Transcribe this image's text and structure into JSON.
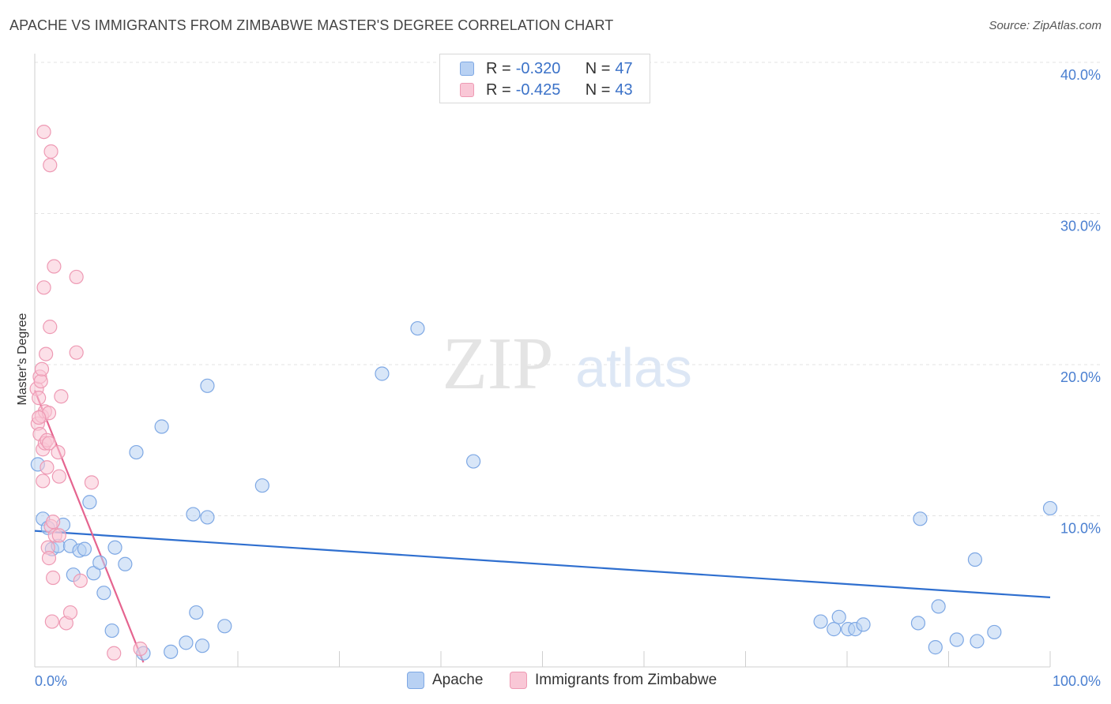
{
  "title": "APACHE VS IMMIGRANTS FROM ZIMBABWE MASTER'S DEGREE CORRELATION CHART",
  "source": "Source: ZipAtlas.com",
  "watermark": {
    "zip": "ZIP",
    "atlas": "atlas"
  },
  "legend": {
    "rows": [
      {
        "r_label": "R = ",
        "r_value": "-0.320",
        "n_label": "N = ",
        "n_value": "47",
        "fill": "#b8d1f3",
        "stroke": "#7ea8e4"
      },
      {
        "r_label": "R = ",
        "r_value": "-0.425",
        "n_label": "N = ",
        "n_value": "43",
        "fill": "#f9c7d6",
        "stroke": "#ee9ab4"
      }
    ]
  },
  "bottom_legend": [
    "Apache",
    "Immigrants from Zimbabwe"
  ],
  "chart_data": {
    "type": "scatter",
    "title": "APACHE VS IMMIGRANTS FROM ZIMBABWE MASTER'S DEGREE CORRELATION CHART",
    "xlabel": "",
    "ylabel": "Master's Degree",
    "xlim": [
      0,
      100
    ],
    "ylim": [
      0,
      40
    ],
    "x_tick_labels": [
      "0.0%",
      "100.0%"
    ],
    "y_ticks": [
      10,
      20,
      30,
      40
    ],
    "y_tick_labels": [
      "10.0%",
      "20.0%",
      "30.0%",
      "40.0%"
    ],
    "grid": true,
    "series": [
      {
        "name": "Apache",
        "color": "#7ea8e4",
        "fill": "#b8d1f3",
        "trend_color": "#2f6fcf",
        "trend": {
          "x": [
            0,
            100
          ],
          "y": [
            9.0,
            4.6
          ]
        },
        "points": [
          [
            0.3,
            13.4
          ],
          [
            0.8,
            9.8
          ],
          [
            1.3,
            9.2
          ],
          [
            1.7,
            7.8
          ],
          [
            2.3,
            8.0
          ],
          [
            2.8,
            9.4
          ],
          [
            3.5,
            8.0
          ],
          [
            3.8,
            6.1
          ],
          [
            4.4,
            7.7
          ],
          [
            4.9,
            7.8
          ],
          [
            5.4,
            10.9
          ],
          [
            5.8,
            6.2
          ],
          [
            6.4,
            6.9
          ],
          [
            6.8,
            4.9
          ],
          [
            7.6,
            2.4
          ],
          [
            7.9,
            7.9
          ],
          [
            8.9,
            6.8
          ],
          [
            10.0,
            14.2
          ],
          [
            10.7,
            0.9
          ],
          [
            12.5,
            15.9
          ],
          [
            13.4,
            1.0
          ],
          [
            14.9,
            1.6
          ],
          [
            15.6,
            10.1
          ],
          [
            15.9,
            3.6
          ],
          [
            16.5,
            1.4
          ],
          [
            17.0,
            18.6
          ],
          [
            17.0,
            9.9
          ],
          [
            18.7,
            2.7
          ],
          [
            22.4,
            12.0
          ],
          [
            34.2,
            19.4
          ],
          [
            37.7,
            22.4
          ],
          [
            43.2,
            13.6
          ],
          [
            77.4,
            3.0
          ],
          [
            78.7,
            2.5
          ],
          [
            79.2,
            3.3
          ],
          [
            80.1,
            2.5
          ],
          [
            80.8,
            2.5
          ],
          [
            81.6,
            2.8
          ],
          [
            87.0,
            2.9
          ],
          [
            87.2,
            9.8
          ],
          [
            88.7,
            1.3
          ],
          [
            89.0,
            4.0
          ],
          [
            90.8,
            1.8
          ],
          [
            92.6,
            7.1
          ],
          [
            92.8,
            1.7
          ],
          [
            94.5,
            2.3
          ],
          [
            100.0,
            10.5
          ]
        ]
      },
      {
        "name": "Immigrants from Zimbabwe",
        "color": "#ee9ab4",
        "fill": "#f9c7d6",
        "trend_color": "#e5648f",
        "trend": {
          "x": [
            0,
            10.7
          ],
          "y": [
            18.3,
            0.3
          ]
        },
        "points": [
          [
            0.2,
            18.4
          ],
          [
            0.3,
            16.1
          ],
          [
            0.4,
            17.8
          ],
          [
            0.5,
            15.4
          ],
          [
            0.5,
            19.2
          ],
          [
            0.6,
            18.9
          ],
          [
            0.7,
            16.6
          ],
          [
            0.7,
            19.7
          ],
          [
            0.8,
            14.4
          ],
          [
            0.8,
            12.3
          ],
          [
            0.9,
            25.1
          ],
          [
            0.9,
            35.4
          ],
          [
            1.0,
            16.9
          ],
          [
            1.0,
            14.8
          ],
          [
            1.1,
            20.7
          ],
          [
            1.2,
            15.0
          ],
          [
            1.2,
            13.2
          ],
          [
            1.3,
            7.9
          ],
          [
            1.4,
            7.2
          ],
          [
            1.4,
            16.8
          ],
          [
            1.4,
            14.8
          ],
          [
            1.5,
            22.5
          ],
          [
            1.6,
            34.1
          ],
          [
            1.5,
            33.2
          ],
          [
            1.6,
            9.3
          ],
          [
            1.7,
            3.0
          ],
          [
            1.8,
            9.6
          ],
          [
            1.8,
            5.9
          ],
          [
            1.9,
            26.5
          ],
          [
            2.0,
            8.7
          ],
          [
            2.3,
            14.2
          ],
          [
            2.4,
            8.7
          ],
          [
            2.4,
            12.6
          ],
          [
            2.6,
            17.9
          ],
          [
            3.1,
            2.9
          ],
          [
            3.5,
            3.6
          ],
          [
            4.1,
            25.8
          ],
          [
            4.1,
            20.8
          ],
          [
            4.5,
            5.7
          ],
          [
            5.6,
            12.2
          ],
          [
            7.8,
            0.9
          ],
          [
            10.4,
            1.2
          ],
          [
            0.4,
            16.5
          ]
        ]
      }
    ]
  }
}
